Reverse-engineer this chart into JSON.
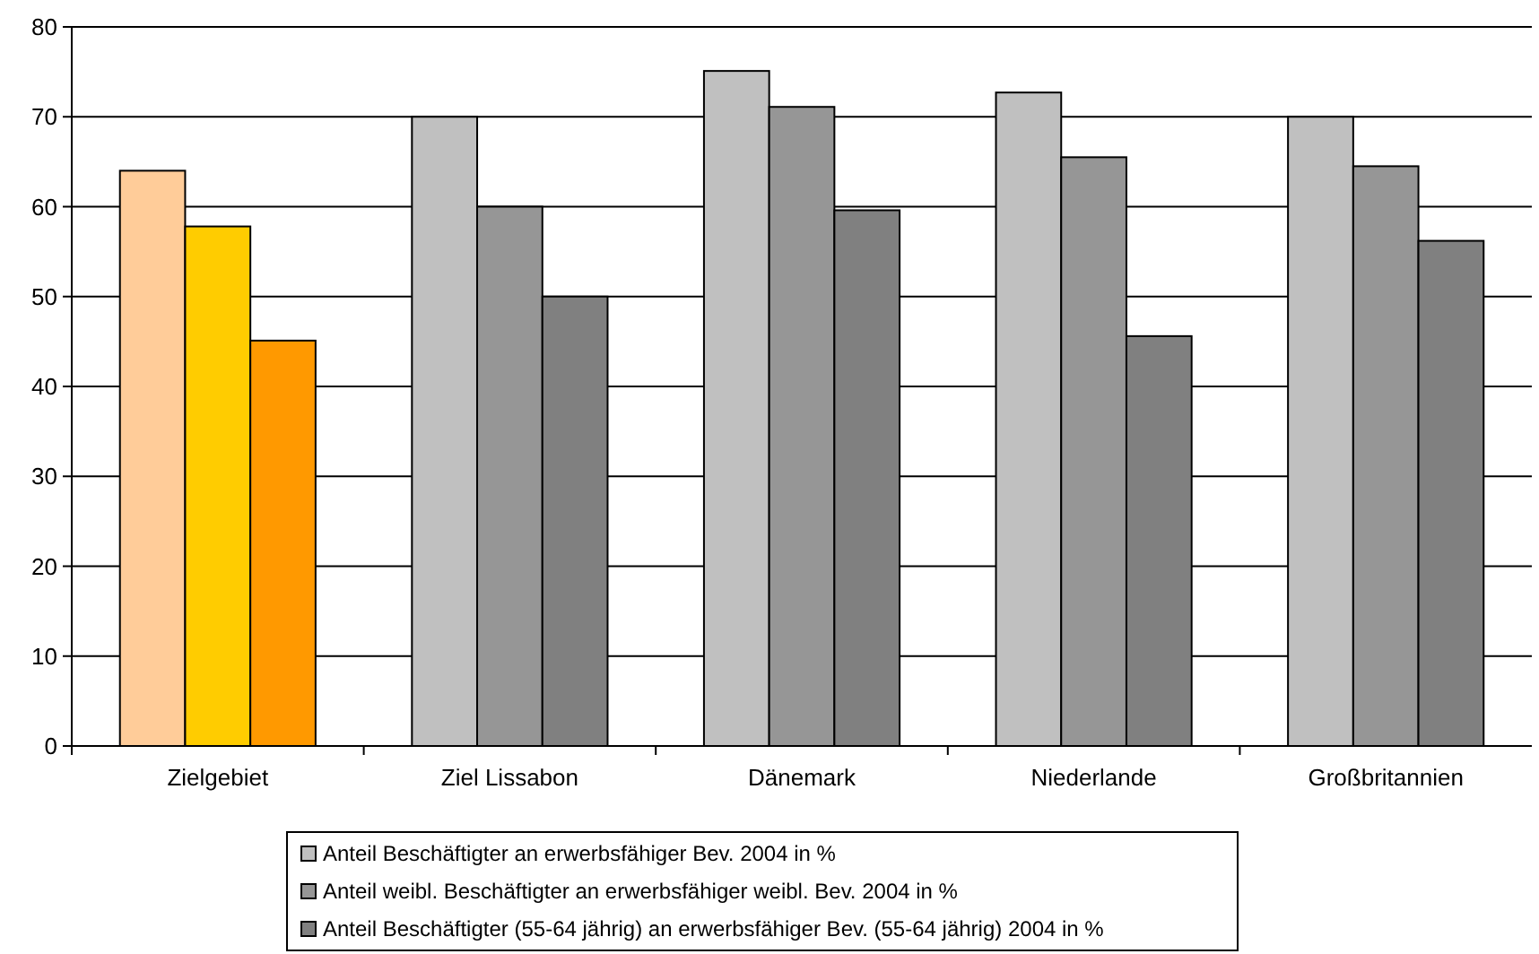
{
  "chart_data": {
    "type": "bar",
    "categories": [
      "Zielgebiet",
      "Ziel Lissabon",
      "Dänemark",
      "Niederlande",
      "Großbritannien"
    ],
    "series": [
      {
        "name": "Anteil Beschäftigter an erwerbsfähiger Bev. 2004 in %",
        "color": "#c0c0c0",
        "colors": [
          "#ffcc99",
          "#c0c0c0",
          "#c0c0c0",
          "#c0c0c0",
          "#c0c0c0"
        ],
        "values": [
          64,
          70,
          75.1,
          72.7,
          70
        ]
      },
      {
        "name": "Anteil weibl. Beschäftigter an erwerbsfähiger weibl. Bev. 2004 in %",
        "color": "#969696",
        "colors": [
          "#ffcc00",
          "#969696",
          "#969696",
          "#969696",
          "#969696"
        ],
        "values": [
          57.8,
          60,
          71.1,
          65.5,
          64.5
        ]
      },
      {
        "name": "Anteil Beschäftigter (55-64 jährig) an erwerbsfähiger Bev. (55-64 jährig) 2004 in %",
        "color": "#808080",
        "colors": [
          "#ff9900",
          "#808080",
          "#808080",
          "#808080",
          "#808080"
        ],
        "values": [
          45.1,
          50,
          59.6,
          45.6,
          56.2
        ]
      }
    ],
    "ylim": [
      0,
      80
    ],
    "yticks": [
      0,
      10,
      20,
      30,
      40,
      50,
      60,
      70,
      80
    ],
    "grid": "y",
    "legend": "bottom"
  }
}
